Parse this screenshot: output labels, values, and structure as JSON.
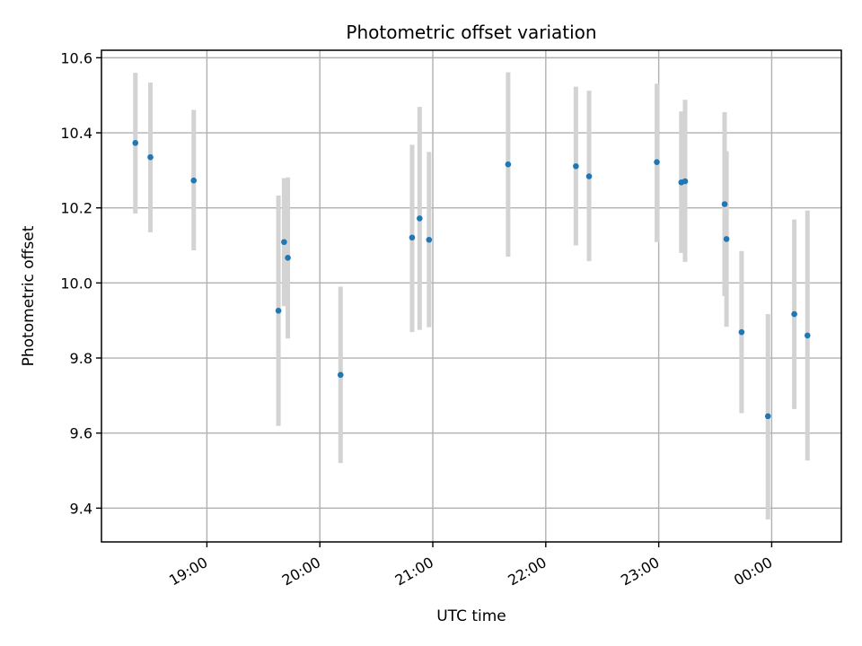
{
  "chart_data": {
    "type": "scatter",
    "title": "Photometric offset variation",
    "xlabel": "UTC time",
    "ylabel": "Photometric offset",
    "x_ticks": [
      "19:00",
      "20:00",
      "21:00",
      "22:00",
      "23:00",
      "00:00"
    ],
    "x_tick_values": [
      "19:00",
      "20:00",
      "21:00",
      "22:00",
      "23:00",
      "24:00"
    ],
    "xlim": [
      "18:04",
      "00:37"
    ],
    "y_ticks": [
      "9.4",
      "9.6",
      "9.8",
      "10.0",
      "10.2",
      "10.4",
      "10.6"
    ],
    "ylim": [
      9.31,
      10.62
    ],
    "grid": true,
    "colors": {
      "points": "#1f77b4",
      "error_bars": "#d3d3d3"
    },
    "series": [
      {
        "x": [
          "18:22",
          "18:30",
          "18:53",
          "19:38",
          "19:41",
          "19:43",
          "20:11",
          "20:49",
          "20:53",
          "20:58",
          "21:40",
          "22:16",
          "22:23",
          "22:59",
          "23:12",
          "23:14",
          "23:35",
          "23:36",
          "23:44",
          "23:58",
          "24:12",
          "24:19"
        ],
        "y": [
          10.373,
          10.335,
          10.273,
          9.926,
          10.109,
          10.067,
          9.755,
          10.121,
          10.172,
          10.115,
          10.316,
          10.311,
          10.284,
          10.322,
          10.268,
          10.271,
          10.21,
          10.117,
          9.869,
          9.645,
          9.917,
          9.86
        ],
        "err_low": [
          10.185,
          10.135,
          10.087,
          9.619,
          9.938,
          9.852,
          9.52,
          9.869,
          9.875,
          9.882,
          10.07,
          10.1,
          10.058,
          10.109,
          10.08,
          10.056,
          9.965,
          9.883,
          9.653,
          9.37,
          9.664,
          9.527
        ],
        "err_high": [
          10.56,
          10.534,
          10.461,
          10.233,
          10.279,
          10.281,
          9.99,
          10.368,
          10.469,
          10.349,
          10.561,
          10.523,
          10.512,
          10.531,
          10.457,
          10.488,
          10.455,
          10.351,
          10.085,
          9.917,
          10.169,
          10.193
        ]
      }
    ]
  }
}
